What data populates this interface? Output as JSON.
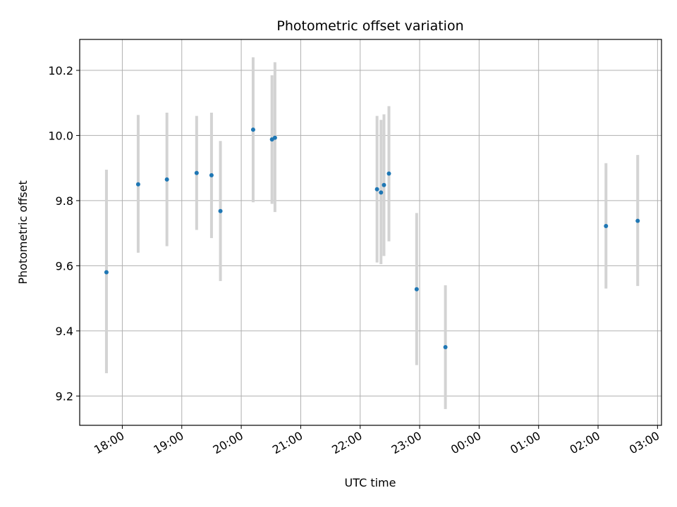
{
  "chart_data": {
    "type": "scatter",
    "title": "Photometric offset variation",
    "xlabel": "UTC time",
    "ylabel": "Photometric offset",
    "xlim": [
      "17:17",
      "03:04"
    ],
    "ylim": [
      9.11,
      10.295
    ],
    "x_ticks": [
      "18:00",
      "19:00",
      "20:00",
      "21:00",
      "22:00",
      "23:00",
      "00:00",
      "01:00",
      "02:00",
      "03:00"
    ],
    "y_ticks": [
      "9.2",
      "9.4",
      "9.6",
      "9.8",
      "10.0",
      "10.2"
    ],
    "grid": true,
    "colors": {
      "point": "#1f77b4",
      "errorbar": "#d3d3d3",
      "grid": "#b0b0b0",
      "axes": "#000000"
    },
    "series": [
      {
        "points": [
          {
            "time": "17:44",
            "y": 9.58,
            "ylow": 9.27,
            "yhigh": 9.895
          },
          {
            "time": "18:16",
            "y": 9.85,
            "ylow": 9.64,
            "yhigh": 10.063
          },
          {
            "time": "18:45",
            "y": 9.865,
            "ylow": 9.66,
            "yhigh": 10.07
          },
          {
            "time": "19:15",
            "y": 9.885,
            "ylow": 9.71,
            "yhigh": 10.06
          },
          {
            "time": "19:30",
            "y": 9.878,
            "ylow": 9.685,
            "yhigh": 10.07
          },
          {
            "time": "19:39",
            "y": 9.768,
            "ylow": 9.553,
            "yhigh": 9.983
          },
          {
            "time": "20:12",
            "y": 10.018,
            "ylow": 9.795,
            "yhigh": 10.24
          },
          {
            "time": "20:31",
            "y": 9.988,
            "ylow": 9.79,
            "yhigh": 10.185
          },
          {
            "time": "20:34",
            "y": 9.993,
            "ylow": 9.765,
            "yhigh": 10.225
          },
          {
            "time": "22:17",
            "y": 9.835,
            "ylow": 9.61,
            "yhigh": 10.06
          },
          {
            "time": "22:21",
            "y": 9.825,
            "ylow": 9.605,
            "yhigh": 10.048
          },
          {
            "time": "22:24",
            "y": 9.848,
            "ylow": 9.63,
            "yhigh": 10.065
          },
          {
            "time": "22:29",
            "y": 9.883,
            "ylow": 9.675,
            "yhigh": 10.09
          },
          {
            "time": "22:57",
            "y": 9.528,
            "ylow": 9.295,
            "yhigh": 9.762
          },
          {
            "time": "23:26",
            "y": 9.35,
            "ylow": 9.16,
            "yhigh": 9.54
          },
          {
            "time": "02:08",
            "y": 9.722,
            "ylow": 9.53,
            "yhigh": 9.915
          },
          {
            "time": "02:40",
            "y": 9.738,
            "ylow": 9.538,
            "yhigh": 9.94
          }
        ]
      }
    ]
  }
}
